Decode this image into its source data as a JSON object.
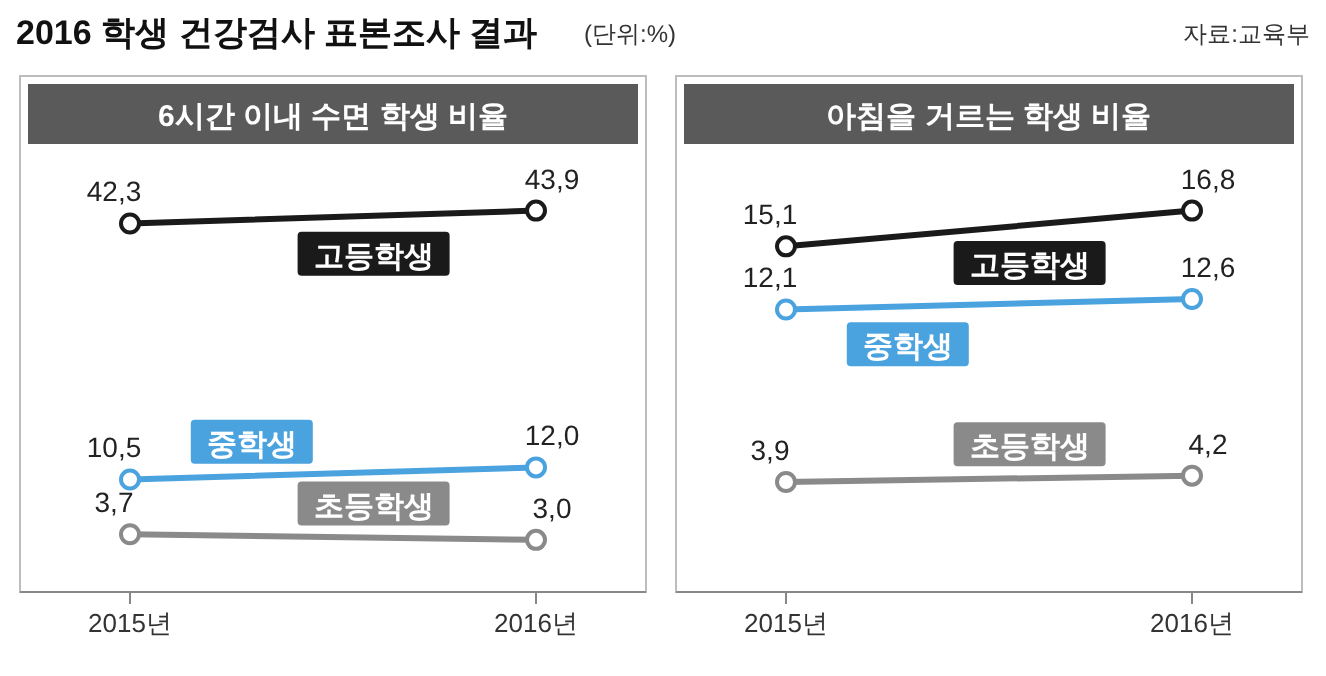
{
  "chart_data": [
    {
      "type": "line",
      "title": "6시간 이내 수면 학생 비율",
      "annotations": [
        "2016 학생 건강검사 표본조사 결과",
        "(단위:%)"
      ],
      "categories": [
        "2015년",
        "2016년"
      ],
      "marker": "circle",
      "line_style": "solid",
      "series": [
        {
          "name": "고등학생",
          "color": "#1a1a1a",
          "values": [
            42.3,
            43.9
          ],
          "value_labels": [
            "42,3",
            "43,9"
          ]
        },
        {
          "name": "중학생",
          "color": "#4aa3df",
          "values": [
            10.5,
            12.0
          ],
          "value_labels": [
            "10,5",
            "12,0"
          ]
        },
        {
          "name": "초등학생",
          "color": "#8a8a8a",
          "values": [
            3.7,
            3.0
          ],
          "value_labels": [
            "3,7",
            "3,0"
          ]
        }
      ]
    },
    {
      "type": "line",
      "title": "아침을 거르는 학생 비율",
      "annotations": [
        "자료:교육부"
      ],
      "categories": [
        "2015년",
        "2016년"
      ],
      "marker": "circle",
      "line_style": "solid",
      "series": [
        {
          "name": "고등학생",
          "color": "#1a1a1a",
          "values": [
            15.1,
            16.8
          ],
          "value_labels": [
            "15,1",
            "16,8"
          ]
        },
        {
          "name": "중학생",
          "color": "#4aa3df",
          "values": [
            12.1,
            12.6
          ],
          "value_labels": [
            "12,1",
            "12,6"
          ]
        },
        {
          "name": "초등학생",
          "color": "#8a8a8a",
          "values": [
            3.9,
            4.2
          ],
          "value_labels": [
            "3,9",
            "4,2"
          ]
        }
      ]
    }
  ]
}
